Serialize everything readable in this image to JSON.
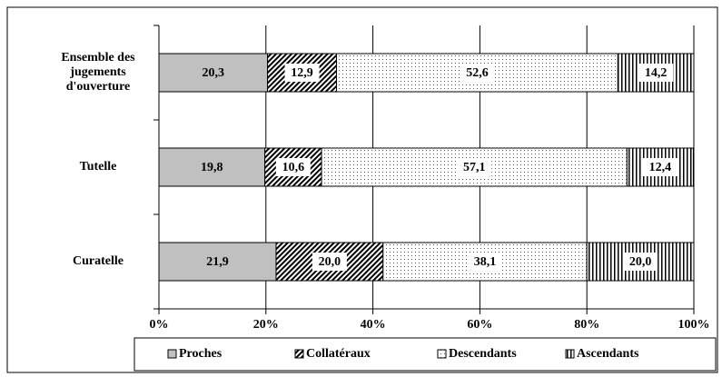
{
  "chart_data": {
    "type": "stacked_bar_horizontal",
    "categories": [
      "Ensemble des jugements d'ouverture",
      "Tutelle",
      "Curatelle"
    ],
    "series": [
      {
        "name": "Proches",
        "color": "#c0c0c0",
        "values": [
          20.3,
          19.8,
          21.9
        ],
        "value_labels": [
          "20,3",
          "19,8",
          "21,9"
        ]
      },
      {
        "name": "Collatéraux",
        "color": "#000000",
        "values": [
          12.9,
          10.6,
          20.0
        ],
        "value_labels": [
          "12,9",
          "10,6",
          "20,0"
        ]
      },
      {
        "name": "Descendants",
        "color": "#808080",
        "values": [
          52.6,
          57.1,
          38.1
        ],
        "value_labels": [
          "52,6",
          "57,1",
          "38,1"
        ]
      },
      {
        "name": "Ascendants",
        "color": "#000000",
        "values": [
          14.2,
          12.4,
          20.0
        ],
        "value_labels": [
          "14,2",
          "12,4",
          "20,0"
        ]
      }
    ],
    "xlim": [
      0,
      100
    ],
    "xticks": [
      {
        "value": 0,
        "label": "0%"
      },
      {
        "value": 20,
        "label": "20%"
      },
      {
        "value": 40,
        "label": "40%"
      },
      {
        "value": 60,
        "label": "60%"
      },
      {
        "value": 80,
        "label": "80%"
      },
      {
        "value": 100,
        "label": "100%"
      }
    ],
    "grid": true,
    "legend": "bottom"
  }
}
